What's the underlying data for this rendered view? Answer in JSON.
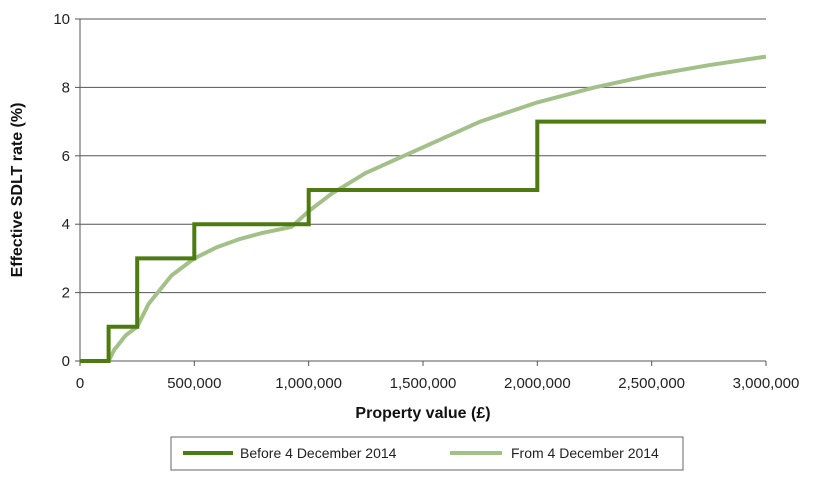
{
  "chart_data": {
    "type": "line",
    "title": "",
    "xlabel": "Property value (£)",
    "ylabel": "Effective SDLT rate (%)",
    "xlim": [
      0,
      3000000
    ],
    "ylim": [
      0,
      10
    ],
    "x_ticks": [
      0,
      500000,
      1000000,
      1500000,
      2000000,
      2500000,
      3000000
    ],
    "x_tick_labels": [
      "0",
      "500,000",
      "1,000,000",
      "1,500,000",
      "2,000,000",
      "2,500,000",
      "3,000,000"
    ],
    "y_ticks": [
      0,
      2,
      4,
      6,
      8,
      10
    ],
    "y_tick_labels": [
      "0",
      "2",
      "4",
      "6",
      "8",
      "10"
    ],
    "grid": "horizontal",
    "legend_position": "bottom",
    "series": [
      {
        "name": "Before 4 December 2014",
        "color": "#4e7a12",
        "x": [
          0,
          125000,
          125000,
          250000,
          250000,
          500000,
          500000,
          1000000,
          1000000,
          2000000,
          2000000,
          3000000
        ],
        "y": [
          0,
          0,
          1,
          1,
          3,
          3,
          4,
          4,
          5,
          5,
          7,
          7
        ]
      },
      {
        "name": "From 4 December 2014",
        "color": "#a3c08a",
        "x": [
          0,
          125000,
          150000,
          200000,
          250000,
          300000,
          400000,
          500000,
          600000,
          700000,
          800000,
          925000,
          1000000,
          1100000,
          1250000,
          1500000,
          1750000,
          2000000,
          2250000,
          2500000,
          2750000,
          3000000
        ],
        "y": [
          0,
          0,
          0.33,
          0.75,
          1.0,
          1.67,
          2.5,
          3.0,
          3.33,
          3.57,
          3.75,
          3.92,
          4.38,
          4.89,
          5.5,
          6.25,
          7.0,
          7.56,
          8.0,
          8.36,
          8.65,
          8.9
        ]
      }
    ]
  }
}
